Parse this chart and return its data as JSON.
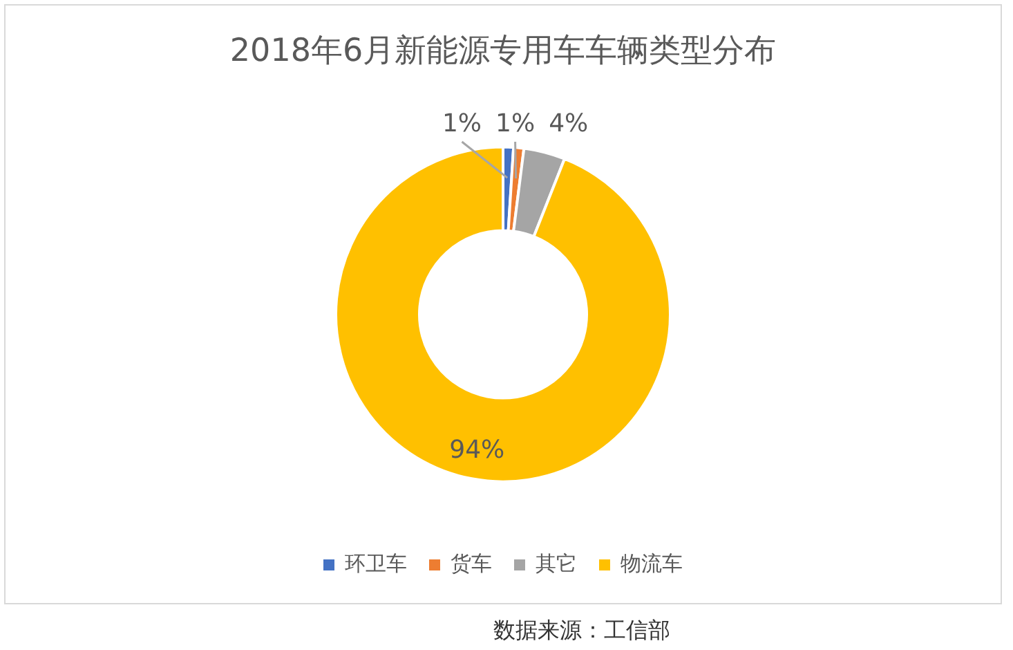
{
  "chart_data": {
    "type": "donut",
    "title": "2018年6月新能源专用车车辆类型分布",
    "categories": [
      "环卫车",
      "货车",
      "其它",
      "物流车"
    ],
    "values": [
      1,
      1,
      4,
      94
    ],
    "colors": [
      "#4472c4",
      "#ed7d31",
      "#a5a5a5",
      "#ffc000"
    ],
    "value_labels": [
      "1%",
      "1%",
      "4%",
      "94%"
    ],
    "legend": "bottom",
    "annotations": [
      "数据来源：工信部"
    ]
  }
}
